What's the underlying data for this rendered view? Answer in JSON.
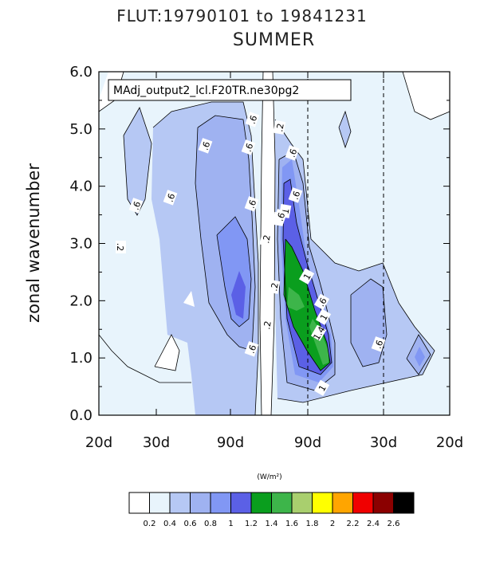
{
  "title": "FLUT:19790101 to 19841231",
  "subtitle": "SUMMER",
  "chart_data": {
    "type": "contour",
    "case_label": "MAdj_output2_lcl.F20TR.ne30pg2",
    "ylabel": "zonal wavenumber",
    "xlabel": "",
    "xtick_labels": [
      "20d",
      "30d",
      "90d",
      "90d",
      "30d",
      "20d"
    ],
    "ytick_labels": [
      "0.0",
      "1.0",
      "2.0",
      "3.0",
      "4.0",
      "5.0",
      "6.0"
    ],
    "ylim": [
      0,
      6
    ],
    "yticks": [
      0,
      1,
      2,
      3,
      4,
      5,
      6
    ],
    "dashed_reference_lines": [
      "90d",
      "30d"
    ],
    "units_label": "(W/m²)",
    "colorbar": {
      "levels": [
        "0.2",
        "0.4",
        "0.6",
        "0.8",
        "1",
        "1.2",
        "1.4",
        "1.6",
        "1.8",
        "2",
        "2.2",
        "2.4",
        "2.6"
      ],
      "colors": [
        "#ffffff",
        "#e8f4fc",
        "#b6c8f4",
        "#9fb2f1",
        "#8197f4",
        "#5b60e6",
        "#0a9e1e",
        "#3db54a",
        "#a9cf6e",
        "#ffff00",
        "#ffa500",
        "#f00000",
        "#8b0000",
        "#000000"
      ]
    },
    "contour_labels": [
      ".6",
      ".6",
      ".6",
      ".6",
      ".6",
      ".6",
      ".2",
      ".2",
      ".2",
      ".2",
      ".2",
      ".2",
      ".6",
      ".6",
      ".6",
      "1",
      "1",
      "1",
      "1.4",
      "1",
      ".6",
      ".6",
      ".6"
    ]
  }
}
